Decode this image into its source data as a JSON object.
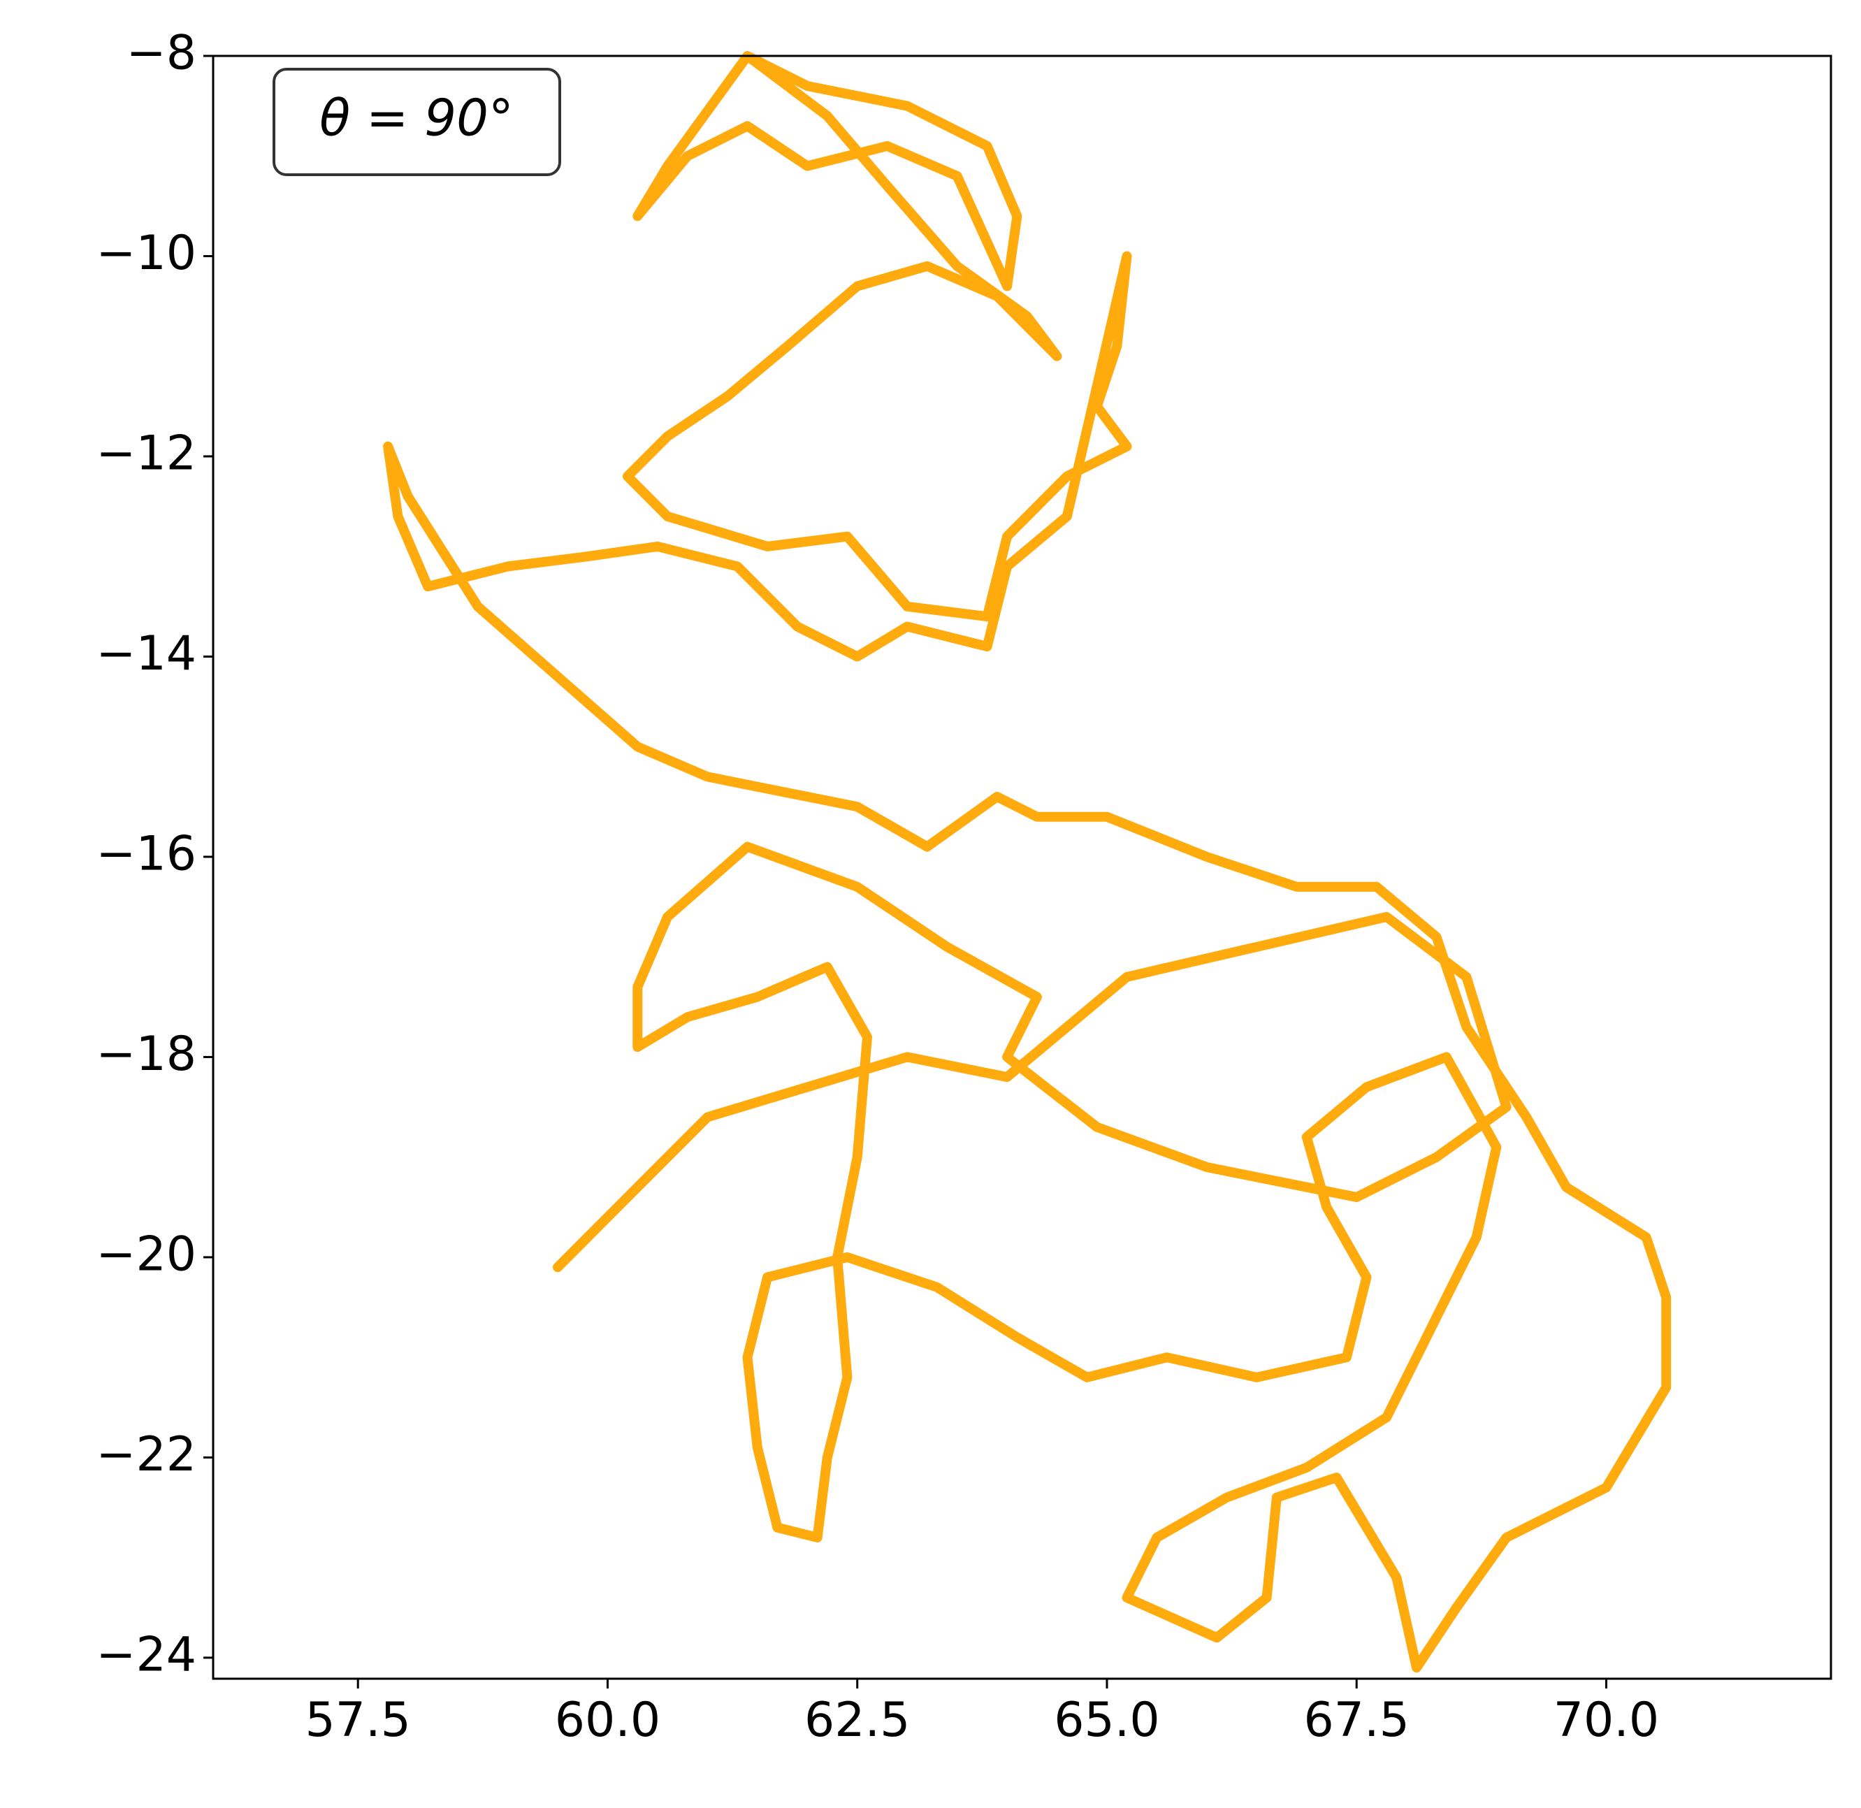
{
  "chart_data": {
    "type": "line",
    "annotation": "θ = 90°",
    "color": "#ffa500",
    "x": [
      61.4,
      62.0,
      63.0,
      63.8,
      64.1,
      64.0,
      63.5,
      62.8,
      62.0,
      61.4,
      60.8,
      60.3,
      60.6,
      61.4,
      62.2,
      62.8,
      63.5,
      64.2,
      64.5,
      63.9,
      63.2,
      62.5,
      61.8,
      61.2,
      60.6,
      60.2,
      60.6,
      61.6,
      62.4,
      63.0,
      63.8,
      64.0,
      64.6,
      65.2,
      64.9,
      65.1,
      65.2,
      64.9,
      64.6,
      64.0,
      63.8,
      63.0,
      62.5,
      61.9,
      61.3,
      60.5,
      59.8,
      59.0,
      58.2,
      57.9,
      57.8,
      58.0,
      58.7,
      59.5,
      60.3,
      61.0,
      61.5,
      62.5,
      63.2,
      63.9,
      64.3,
      65.0,
      66.0,
      66.9,
      67.7,
      68.3,
      68.6,
      69.2,
      69.6,
      70.4,
      70.6,
      70.6,
      70.0,
      69.0,
      68.5,
      68.1,
      67.9,
      67.3,
      66.7,
      66.6,
      66.1,
      65.2,
      65.5,
      66.2,
      67.0,
      67.8,
      68.3,
      68.7,
      68.9,
      68.4,
      67.6,
      67.0,
      67.2,
      67.6,
      67.4,
      66.5,
      65.6,
      64.8,
      64.1,
      63.3,
      62.4,
      61.6,
      61.4,
      61.5,
      61.7,
      62.1,
      62.2,
      62.4,
      62.3,
      62.5,
      62.6,
      62.2,
      61.5,
      60.8,
      60.3,
      60.3,
      60.6,
      61.4,
      62.5,
      63.4,
      64.3,
      64.0,
      64.9,
      66.0,
      67.5,
      68.3,
      69.0,
      68.6,
      67.8,
      66.5,
      65.2,
      64.0,
      63.0,
      62.0,
      61.0,
      60.4,
      59.5
    ],
    "values": [
      -8.0,
      -8.3,
      -8.5,
      -8.9,
      -9.6,
      -10.3,
      -9.2,
      -8.9,
      -9.1,
      -8.7,
      -9.0,
      -9.6,
      -9.1,
      -8.0,
      -8.6,
      -9.3,
      -10.1,
      -10.6,
      -11.0,
      -10.4,
      -10.1,
      -10.3,
      -10.9,
      -11.4,
      -11.8,
      -12.2,
      -12.6,
      -12.9,
      -12.8,
      -13.5,
      -13.6,
      -12.8,
      -12.2,
      -11.9,
      -11.5,
      -10.9,
      -10.0,
      -11.3,
      -12.6,
      -13.1,
      -13.9,
      -13.7,
      -14.0,
      -13.7,
      -13.1,
      -12.9,
      -13.0,
      -13.1,
      -13.3,
      -12.6,
      -11.9,
      -12.4,
      -13.5,
      -14.2,
      -14.9,
      -15.2,
      -15.3,
      -15.5,
      -15.9,
      -15.4,
      -15.6,
      -15.6,
      -16.0,
      -16.3,
      -16.3,
      -16.8,
      -17.7,
      -18.6,
      -19.3,
      -19.8,
      -20.4,
      -21.3,
      -22.3,
      -22.8,
      -23.5,
      -24.1,
      -23.2,
      -22.2,
      -22.4,
      -23.4,
      -23.8,
      -23.4,
      -22.8,
      -22.4,
      -22.1,
      -21.6,
      -20.6,
      -19.8,
      -18.9,
      -18.0,
      -18.3,
      -18.8,
      -19.5,
      -20.2,
      -21.0,
      -21.2,
      -21.0,
      -21.2,
      -20.8,
      -20.3,
      -20.0,
      -20.2,
      -21.0,
      -21.9,
      -22.7,
      -22.8,
      -22.0,
      -21.2,
      -20.0,
      -19.0,
      -17.8,
      -17.1,
      -17.4,
      -17.6,
      -17.9,
      -17.3,
      -16.6,
      -15.9,
      -16.3,
      -16.9,
      -17.4,
      -18.0,
      -18.7,
      -19.1,
      -19.4,
      -19.0,
      -18.5,
      -17.2,
      -16.6,
      -16.9,
      -17.2,
      -18.2,
      -18.0,
      -18.3,
      -18.6,
      -19.2,
      -20.1
    ],
    "xlim": [
      56.05,
      72.25
    ],
    "ylim": [
      -24.21,
      -8
    ],
    "xticks": [
      57.5,
      {
        "value": 60,
        "label": "60.0"
      },
      62.5,
      {
        "value": 65,
        "label": "65.0"
      },
      67.5,
      {
        "value": 70,
        "label": "70.0"
      }
    ],
    "yticks": [
      {
        "value": -8,
        "label": "−8"
      },
      {
        "value": -10,
        "label": "−10"
      },
      {
        "value": -12,
        "label": "−12"
      },
      {
        "value": -14,
        "label": "−14"
      },
      {
        "value": -16,
        "label": "−16"
      },
      {
        "value": -18,
        "label": "−18"
      },
      {
        "value": -20,
        "label": "−20"
      },
      {
        "value": -22,
        "label": "−22"
      },
      {
        "value": -24,
        "label": "−24"
      }
    ],
    "grid": false
  }
}
